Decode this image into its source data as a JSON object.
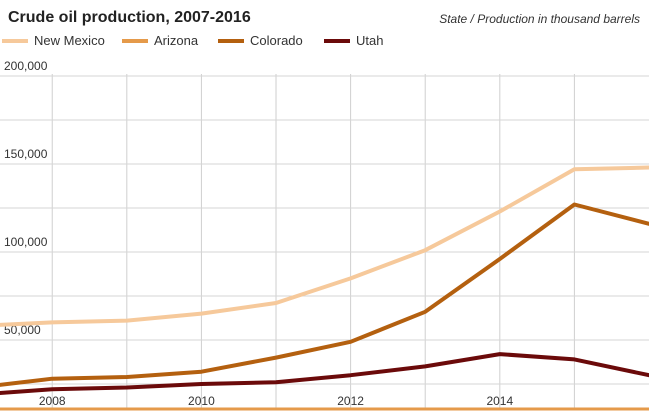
{
  "chart_data": {
    "type": "line",
    "title": "Crude oil production, 2007-2016",
    "subtitle": "State / Production in thousand barrels",
    "x": [
      2007,
      2008,
      2009,
      2010,
      2011,
      2012,
      2013,
      2014,
      2015,
      2016
    ],
    "xlim": [
      2007.3,
      2016
    ],
    "ylim": [
      0,
      200000
    ],
    "y_ticks": [
      50000,
      100000,
      150000,
      200000
    ],
    "y_tick_labels": [
      "50,000",
      "100,000",
      "150,000",
      "200,000"
    ],
    "x_ticks": [
      2008,
      2010,
      2012,
      2014
    ],
    "x_tick_labels": [
      "2008",
      "2010",
      "2012",
      "2014"
    ],
    "grid": true,
    "legend_position": "top-left",
    "series": [
      {
        "name": "New Mexico",
        "color": "#f6c99b",
        "values": [
          58000,
          60000,
          61000,
          65000,
          71000,
          85000,
          101000,
          123000,
          147000,
          148000
        ]
      },
      {
        "name": "Arizona",
        "color": "#e59a4a",
        "values": [
          0,
          0,
          0,
          0,
          0,
          0,
          0,
          0,
          0,
          0
        ]
      },
      {
        "name": "Colorado",
        "color": "#b4600f",
        "values": [
          23000,
          28000,
          29000,
          32000,
          40000,
          49000,
          66000,
          96000,
          127000,
          116000
        ]
      },
      {
        "name": "Utah",
        "color": "#6b0a0a",
        "values": [
          19000,
          22000,
          23000,
          25000,
          26000,
          30000,
          35000,
          42000,
          39000,
          30000
        ]
      }
    ]
  }
}
